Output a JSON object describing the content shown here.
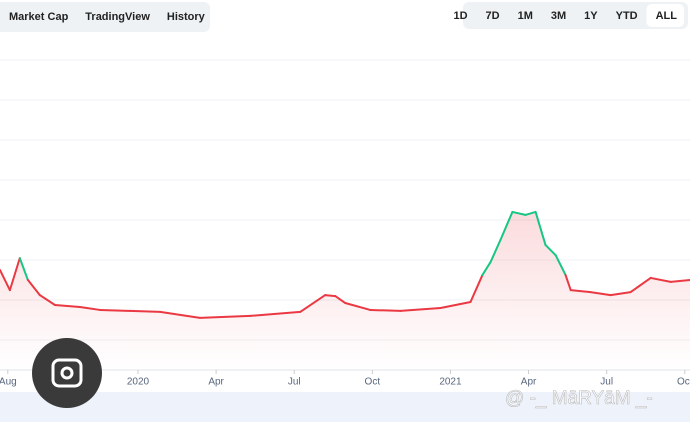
{
  "tabs": [
    "Market Cap",
    "TradingView",
    "History"
  ],
  "ranges": [
    "1D",
    "7D",
    "1M",
    "3M",
    "1Y",
    "YTD",
    "ALL"
  ],
  "active_range": "ALL",
  "watermark": "@ -_ MāRYāM _-",
  "chart_data": {
    "type": "line",
    "x": [
      -0.3,
      0.08,
      0.46,
      0.77,
      1.23,
      1.81,
      2.77,
      3.54,
      4.69,
      5.85,
      7.38,
      9.31,
      11.23,
      12.19,
      12.58,
      12.96,
      13.92,
      15.08,
      16.62,
      17.77,
      18.23,
      18.54,
      18.92,
      19.38,
      19.88,
      20.27,
      20.65,
      21.04,
      21.42,
      21.62,
      22.38,
      23.15,
      23.92,
      24.69,
      25.46,
      26.23
    ],
    "values": [
      30.3,
      24.2,
      33.9,
      27.3,
      22.7,
      19.7,
      19.1,
      18.2,
      17.9,
      17.6,
      15.8,
      16.4,
      17.6,
      22.7,
      22.4,
      20.3,
      18.2,
      17.9,
      18.8,
      20.6,
      28.8,
      32.7,
      39.4,
      47.9,
      47.0,
      47.9,
      37.9,
      34.8,
      28.8,
      24.2,
      23.6,
      22.7,
      23.6,
      27.9,
      26.7,
      27.3
    ],
    "up_color": "#16c784",
    "down_color": "#ea3943",
    "xlim": [
      -0.3,
      26.2
    ],
    "ylim": [
      0,
      100
    ],
    "xticks": [
      {
        "value": 0,
        "label": "Aug"
      },
      {
        "value": 5,
        "label": "2020"
      },
      {
        "value": 8,
        "label": "Apr"
      },
      {
        "value": 11,
        "label": "Jul"
      },
      {
        "value": 14,
        "label": "Oct"
      },
      {
        "value": 17,
        "label": "2021"
      },
      {
        "value": 20,
        "label": "Apr"
      },
      {
        "value": 23,
        "label": "Jul"
      },
      {
        "value": 26,
        "label": "Oct"
      }
    ]
  }
}
